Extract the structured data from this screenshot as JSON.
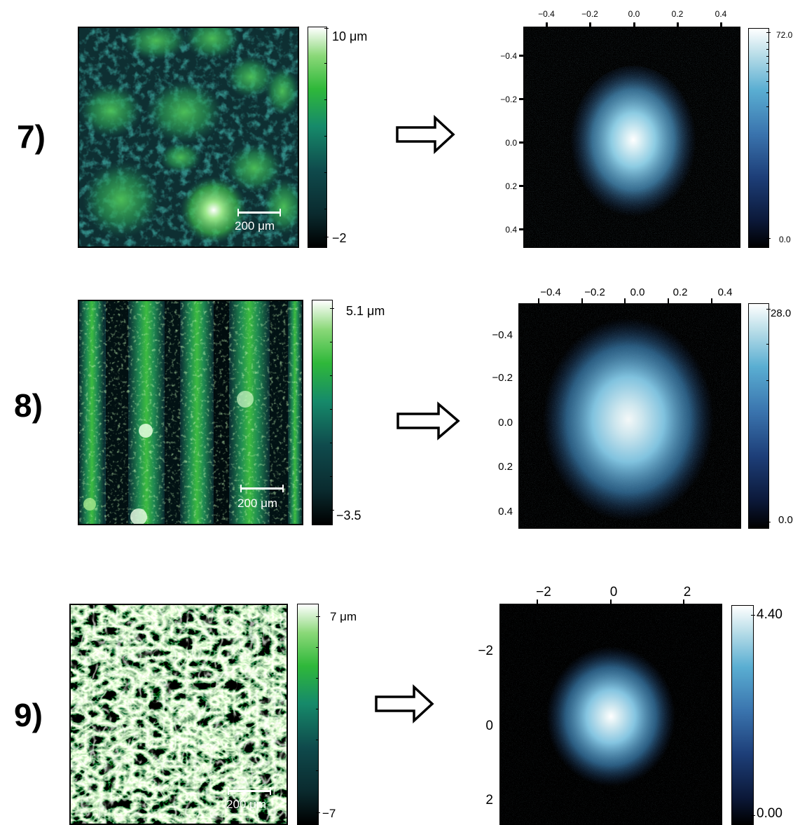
{
  "panels": [
    {
      "label": "7)",
      "topo": {
        "colorbar_max": "10 μm",
        "colorbar_min": "−2",
        "scalebar": "200 μm",
        "pattern": "blobs"
      },
      "fft": {
        "x_ticks": [
          "−0.4",
          "−0.2",
          "0.0",
          "0.2",
          "0.4"
        ],
        "y_ticks": [
          "−0.4",
          "−0.2",
          "0.0",
          "0.2",
          "0.4"
        ],
        "colorbar_max": "72.0",
        "colorbar_min": "0.0"
      }
    },
    {
      "label": "8)",
      "topo": {
        "colorbar_max": "5.1 μm",
        "colorbar_min": "−3.5",
        "scalebar": "200 μm",
        "pattern": "stripes"
      },
      "fft": {
        "x_ticks": [
          "−0.4",
          "−0.2",
          "0.0",
          "0.2",
          "0.4"
        ],
        "y_ticks": [
          "−0.4",
          "−0.2",
          "0.0",
          "0.2",
          "0.4"
        ],
        "colorbar_max": "28.0",
        "colorbar_min": "0.0"
      }
    },
    {
      "label": "9)",
      "topo": {
        "colorbar_max": "7 μm",
        "colorbar_min": "−7",
        "scalebar": "200 μm",
        "pattern": "wrinkles"
      },
      "fft": {
        "x_ticks": [
          "−2",
          "0",
          "2"
        ],
        "y_ticks": [
          "−2",
          "0",
          "2"
        ],
        "colorbar_max": "4.40",
        "colorbar_min": "0.00"
      }
    }
  ],
  "colors": {
    "topo_accent": "#2fb83a",
    "fft_accent": "#5aaed2"
  }
}
